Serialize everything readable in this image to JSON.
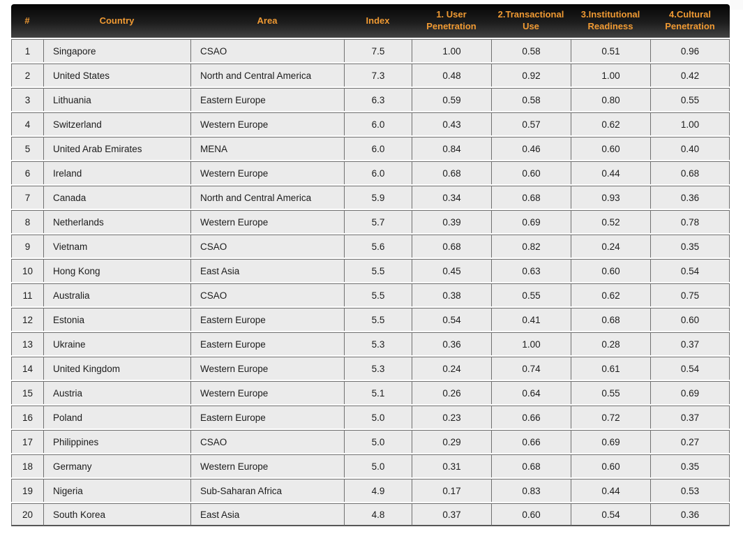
{
  "theme": {
    "header_background_top": "#050505",
    "header_background_bottom": "#424242",
    "header_text_color": "#F09A33",
    "cell_background": "#ebebeb",
    "cell_border_color": "#6f6f6f",
    "cell_text_color": "#1c1c1c",
    "page_background": "#ffffff"
  },
  "chart_data": {
    "type": "table",
    "legend_position": "none",
    "grid": "on",
    "columns": [
      {
        "id": "rank",
        "label": "#",
        "align": "center"
      },
      {
        "id": "country",
        "label": "Country",
        "align": "left"
      },
      {
        "id": "area",
        "label": "Area",
        "align": "left"
      },
      {
        "id": "index",
        "label": "Index",
        "align": "center"
      },
      {
        "id": "user-penetration",
        "label": "1. User Penetration",
        "align": "center"
      },
      {
        "id": "transactional-use",
        "label": "2.Transactional Use",
        "align": "center"
      },
      {
        "id": "institutional-readiness",
        "label": "3.Institutional Readiness",
        "align": "center"
      },
      {
        "id": "cultural-penetration",
        "label": "4.Cultural Penetration",
        "align": "center"
      }
    ],
    "rows": [
      [
        "1",
        "Singapore",
        "CSAO",
        "7.5",
        "1.00",
        "0.58",
        "0.51",
        "0.96"
      ],
      [
        "2",
        "United States",
        "North and Central America",
        "7.3",
        "0.48",
        "0.92",
        "1.00",
        "0.42"
      ],
      [
        "3",
        "Lithuania",
        "Eastern Europe",
        "6.3",
        "0.59",
        "0.58",
        "0.80",
        "0.55"
      ],
      [
        "4",
        "Switzerland",
        "Western Europe",
        "6.0",
        "0.43",
        "0.57",
        "0.62",
        "1.00"
      ],
      [
        "5",
        "United Arab Emirates",
        "MENA",
        "6.0",
        "0.84",
        "0.46",
        "0.60",
        "0.40"
      ],
      [
        "6",
        "Ireland",
        "Western Europe",
        "6.0",
        "0.68",
        "0.60",
        "0.44",
        "0.68"
      ],
      [
        "7",
        "Canada",
        "North and Central America",
        "5.9",
        "0.34",
        "0.68",
        "0.93",
        "0.36"
      ],
      [
        "8",
        "Netherlands",
        "Western Europe",
        "5.7",
        "0.39",
        "0.69",
        "0.52",
        "0.78"
      ],
      [
        "9",
        "Vietnam",
        "CSAO",
        "5.6",
        "0.68",
        "0.82",
        "0.24",
        "0.35"
      ],
      [
        "10",
        "Hong Kong",
        "East Asia",
        "5.5",
        "0.45",
        "0.63",
        "0.60",
        "0.54"
      ],
      [
        "11",
        "Australia",
        "CSAO",
        "5.5",
        "0.38",
        "0.55",
        "0.62",
        "0.75"
      ],
      [
        "12",
        "Estonia",
        "Eastern Europe",
        "5.5",
        "0.54",
        "0.41",
        "0.68",
        "0.60"
      ],
      [
        "13",
        "Ukraine",
        "Eastern Europe",
        "5.3",
        "0.36",
        "1.00",
        "0.28",
        "0.37"
      ],
      [
        "14",
        "United Kingdom",
        "Western Europe",
        "5.3",
        "0.24",
        "0.74",
        "0.61",
        "0.54"
      ],
      [
        "15",
        "Austria",
        "Western Europe",
        "5.1",
        "0.26",
        "0.64",
        "0.55",
        "0.69"
      ],
      [
        "16",
        "Poland",
        "Eastern Europe",
        "5.0",
        "0.23",
        "0.66",
        "0.72",
        "0.37"
      ],
      [
        "17",
        "Philippines",
        "CSAO",
        "5.0",
        "0.29",
        "0.66",
        "0.69",
        "0.27"
      ],
      [
        "18",
        "Germany",
        "Western Europe",
        "5.0",
        "0.31",
        "0.68",
        "0.60",
        "0.35"
      ],
      [
        "19",
        "Nigeria",
        "Sub-Saharan Africa",
        "4.9",
        "0.17",
        "0.83",
        "0.44",
        "0.53"
      ],
      [
        "20",
        "South Korea",
        "East Asia",
        "4.8",
        "0.37",
        "0.60",
        "0.54",
        "0.36"
      ]
    ]
  }
}
